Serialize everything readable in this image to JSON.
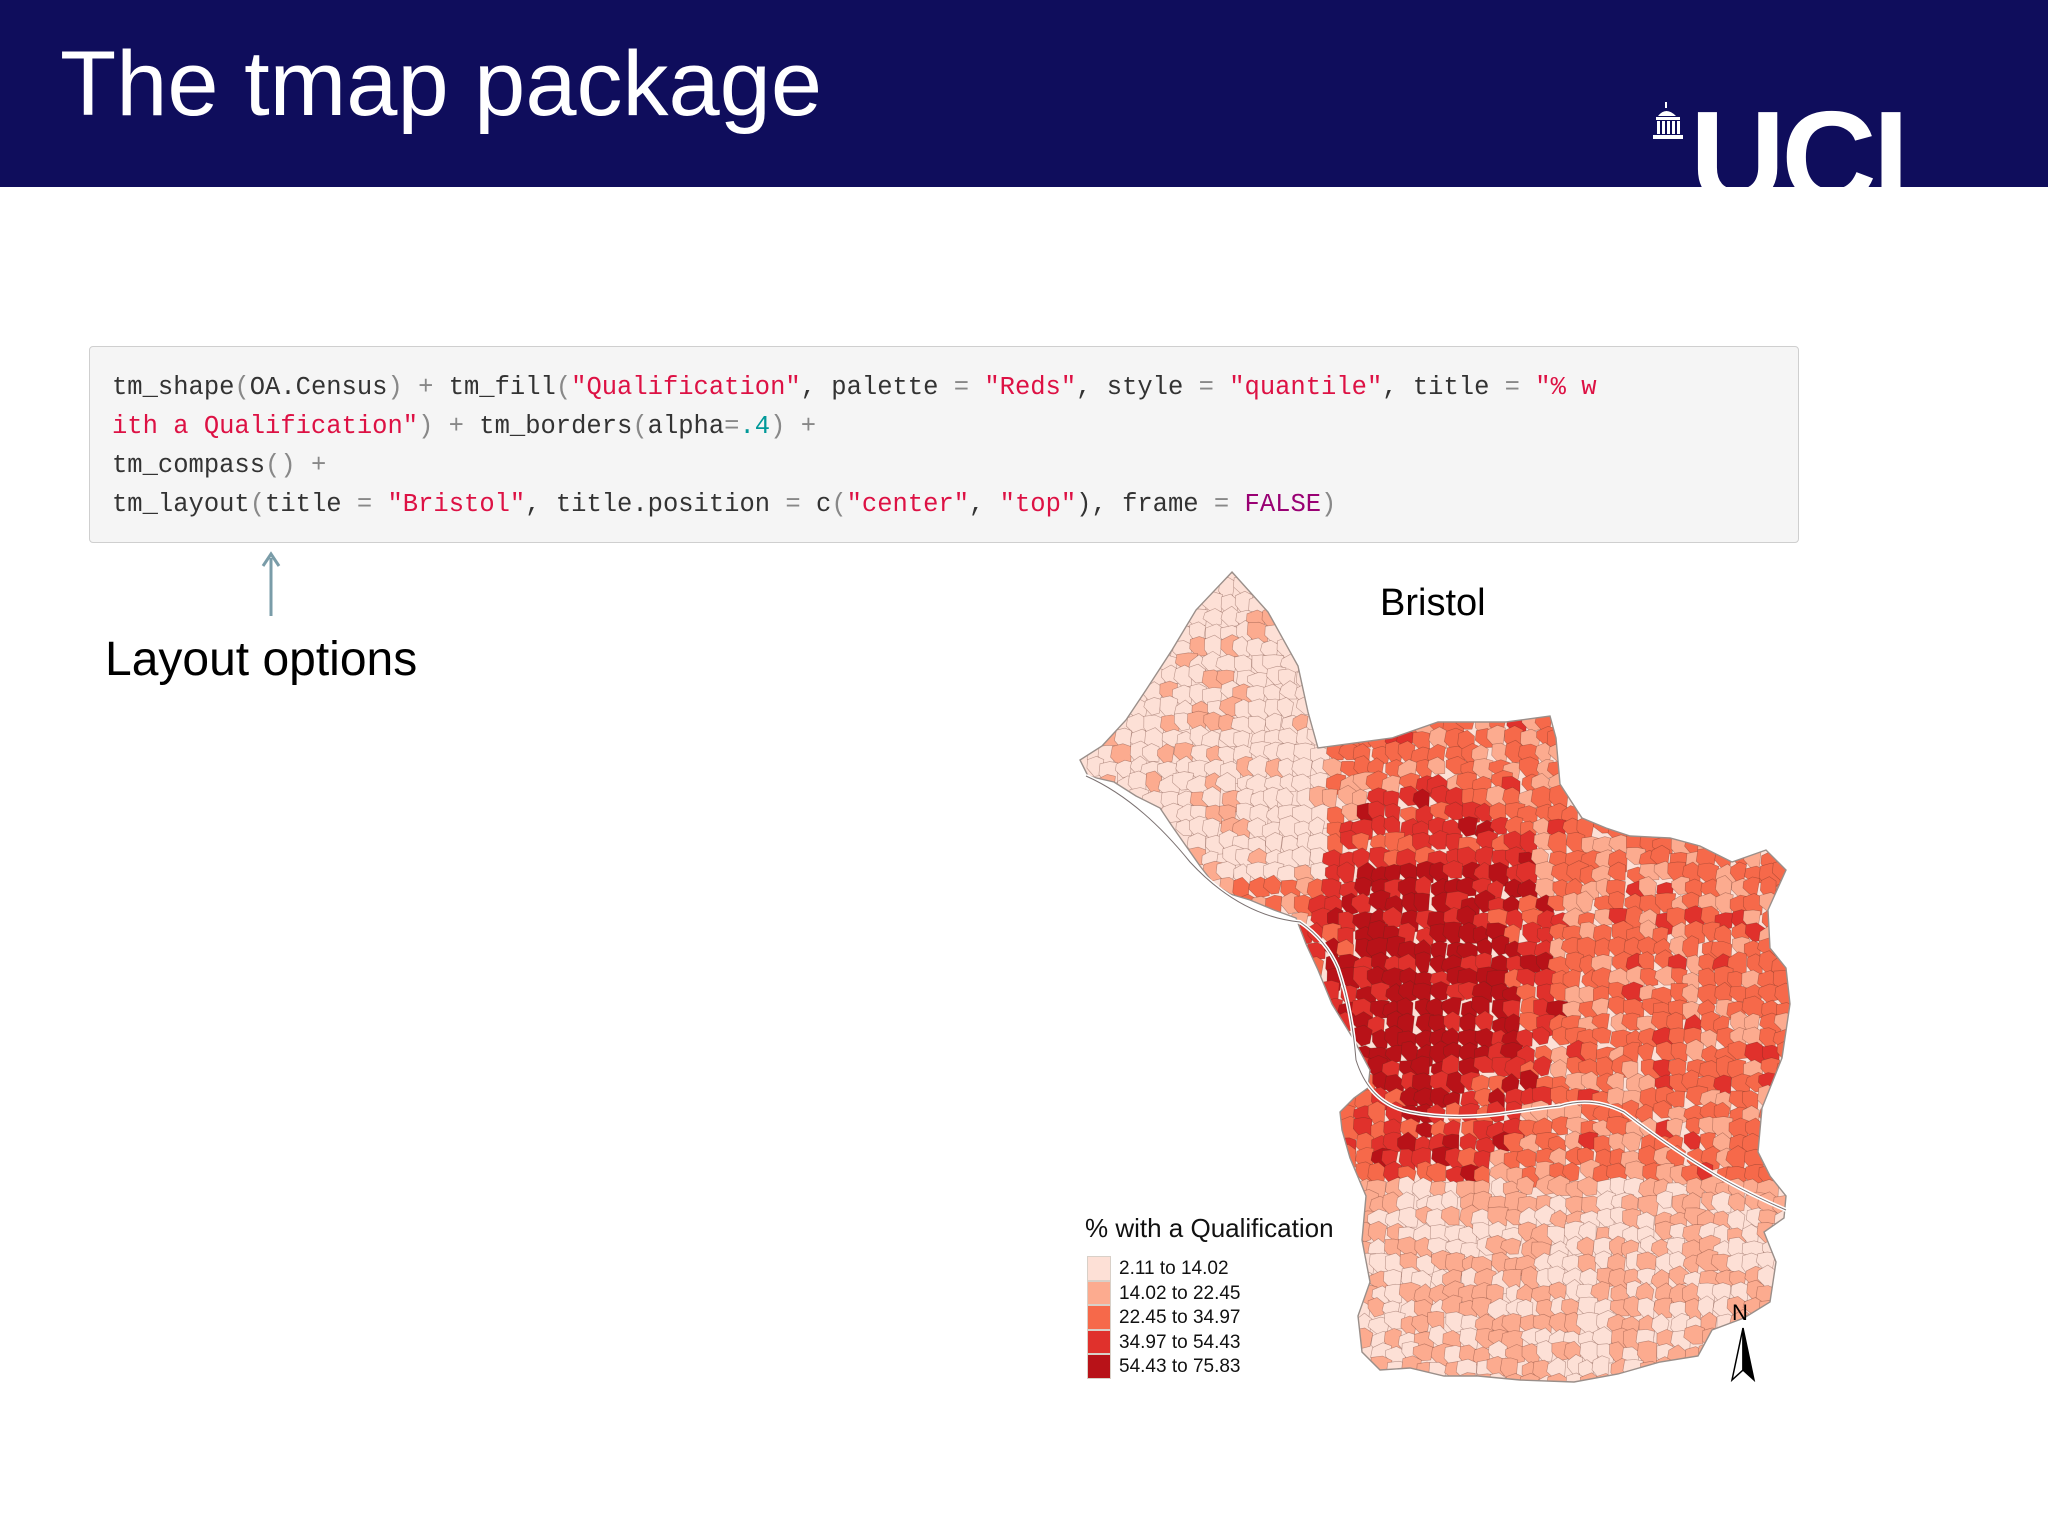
{
  "slide": {
    "title": "The tmap package",
    "logo_text": "UCL",
    "colors": {
      "header_bg": "#0f0d5c",
      "code_bg": "#f5f5f5",
      "string": "#dd1144",
      "number": "#009999",
      "keyword": "#990073"
    }
  },
  "code": {
    "tokens": [
      [
        "tm_shape",
        "(",
        "OA.Census",
        ")",
        " + ",
        "tm_fill",
        "(",
        "\"Qualification\"",
        ", palette ",
        "=",
        " ",
        "\"Reds\"",
        ", style ",
        "=",
        " ",
        "\"quantile\"",
        ", title ",
        "=",
        " ",
        "\"% w"
      ],
      [
        "ith a Qualification\"",
        ")",
        " + ",
        "tm_borders",
        "(",
        "alpha",
        "=",
        ".4",
        ")",
        " +"
      ],
      [
        "tm_compass",
        "()",
        " +"
      ],
      [
        "tm_layout",
        "(",
        "title ",
        "=",
        " ",
        "\"Bristol\"",
        ", title.position ",
        "=",
        " c",
        "(",
        "\"center\"",
        ", ",
        "\"top\"",
        "), frame ",
        "=",
        " ",
        "FALSE",
        ")"
      ]
    ]
  },
  "annotation": {
    "label": "Layout options",
    "icon": "arrow-up-icon"
  },
  "map": {
    "title": "Bristol",
    "legend_title": "% with a Qualification",
    "legend": [
      {
        "label": "2.11 to 14.02",
        "color": "#fde0d6"
      },
      {
        "label": "14.02 to 22.45",
        "color": "#fcab8f"
      },
      {
        "label": "22.45 to 34.97",
        "color": "#f6694a"
      },
      {
        "label": "34.97 to 54.43",
        "color": "#e0312c"
      },
      {
        "label": "54.43 to 75.83",
        "color": "#b81218"
      }
    ],
    "compass_label": "N",
    "compass_icon": "north-arrow-icon"
  }
}
